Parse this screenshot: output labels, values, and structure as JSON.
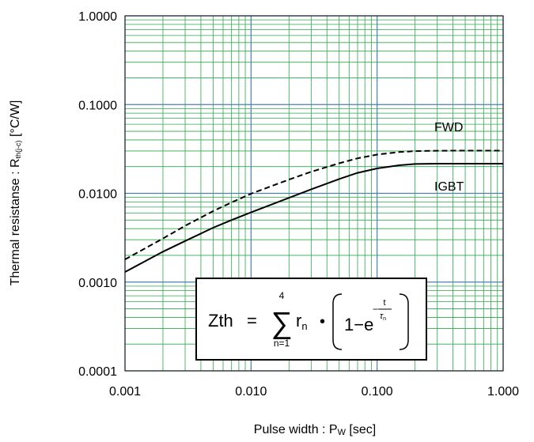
{
  "chart_data": {
    "type": "line",
    "title": "",
    "xlabel": "Pulse width : P",
    "xlabel_sub": "W",
    "xlabel_unit": " [sec]",
    "ylabel": "Thermal resistanse : R",
    "ylabel_sub": "th(j-c)",
    "ylabel_unit": " [°C/W]",
    "x_scale": "log",
    "y_scale": "log",
    "xlim": [
      0.001,
      1.0
    ],
    "ylim": [
      0.0001,
      1.0
    ],
    "x_ticks": [
      0.001,
      0.01,
      0.1,
      1.0
    ],
    "x_tick_labels": [
      "0.001",
      "0.010",
      "0.100",
      "1.000"
    ],
    "y_ticks": [
      0.0001,
      0.001,
      0.01,
      0.1,
      1.0
    ],
    "y_tick_labels": [
      "0.0001",
      "0.0010",
      "0.0100",
      "0.1000",
      "1.0000"
    ],
    "grid": true,
    "grid_major_color": "#4a7fb0",
    "grid_minor_color": "#2ea84a",
    "series": [
      {
        "name": "FWD",
        "line_style": "dashed",
        "x": [
          0.001,
          0.002,
          0.003,
          0.005,
          0.007,
          0.01,
          0.02,
          0.03,
          0.05,
          0.07,
          0.1,
          0.15,
          0.2,
          0.3,
          0.5,
          0.7,
          1.0
        ],
        "y": [
          0.0018,
          0.0031,
          0.0043,
          0.0063,
          0.0079,
          0.0099,
          0.0143,
          0.0175,
          0.0218,
          0.0248,
          0.0273,
          0.0292,
          0.0299,
          0.0302,
          0.0303,
          0.0303,
          0.0303
        ]
      },
      {
        "name": "IGBT",
        "line_style": "solid",
        "x": [
          0.001,
          0.002,
          0.003,
          0.005,
          0.007,
          0.01,
          0.02,
          0.03,
          0.05,
          0.07,
          0.1,
          0.15,
          0.2,
          0.3,
          0.5,
          0.7,
          1.0
        ],
        "y": [
          0.0013,
          0.0022,
          0.0029,
          0.0041,
          0.005,
          0.0061,
          0.0089,
          0.0111,
          0.0145,
          0.017,
          0.0191,
          0.0207,
          0.0214,
          0.0216,
          0.0216,
          0.0216,
          0.0216
        ]
      }
    ],
    "formula": {
      "lhs": "Zth",
      "eq": "=",
      "sum_top": "4",
      "sum_bottom": "n=1",
      "r": "r",
      "r_sub": "n",
      "dot": "•",
      "one_minus": "1−e",
      "exp_num": "t",
      "exp_den": "τ",
      "exp_den_sub": "n"
    }
  }
}
